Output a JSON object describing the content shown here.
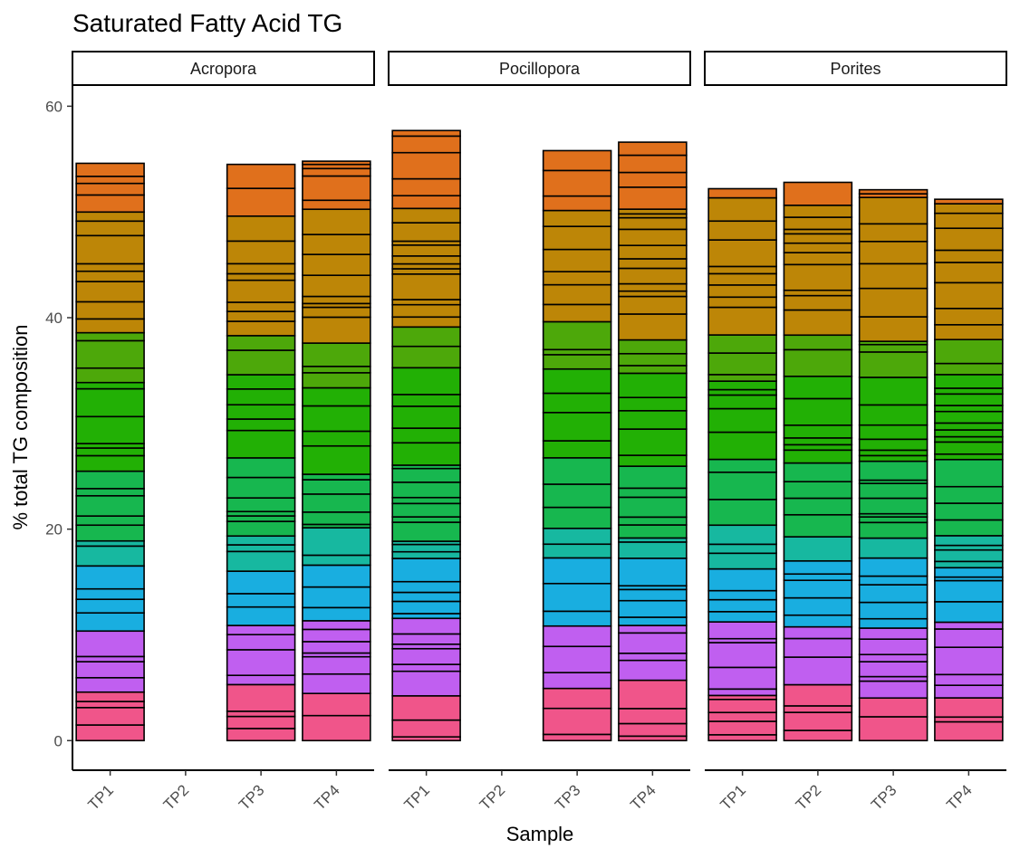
{
  "chart_data": {
    "type": "bar",
    "stacked": true,
    "title": "Saturated Fatty Acid TG",
    "xlabel": "Sample",
    "ylabel": "% total TG composition",
    "ylim": [
      -2.8,
      62
    ],
    "y_ticks": [
      0,
      20,
      40,
      60
    ],
    "x_tick_labels": [
      "TP1",
      "TP2",
      "TP3",
      "TP4"
    ],
    "facets": [
      {
        "name": "Acropora",
        "bars": [
          {
            "sample": "TP1",
            "total": 54.6
          },
          {
            "sample": "TP2",
            "total": 0
          },
          {
            "sample": "TP3",
            "total": 54.5
          },
          {
            "sample": "TP4",
            "total": 54.8
          }
        ]
      },
      {
        "name": "Pocillopora",
        "bars": [
          {
            "sample": "TP1",
            "total": 57.7
          },
          {
            "sample": "TP2",
            "total": 0
          },
          {
            "sample": "TP3",
            "total": 55.8
          },
          {
            "sample": "TP4",
            "total": 56.6
          }
        ]
      },
      {
        "name": "Porites",
        "bars": [
          {
            "sample": "TP1",
            "total": 52.2
          },
          {
            "sample": "TP2",
            "total": 52.8
          },
          {
            "sample": "TP3",
            "total": 52.1
          },
          {
            "sample": "TP4",
            "total": 51.2
          }
        ]
      }
    ],
    "color_bands": [
      {
        "from": 0,
        "to": 4.5,
        "color": "#f0558a"
      },
      {
        "from": 4.5,
        "to": 11,
        "color": "#c05ff0"
      },
      {
        "from": 11,
        "to": 16.5,
        "color": "#19aee0"
      },
      {
        "from": 16.5,
        "to": 19.5,
        "color": "#17b8a0"
      },
      {
        "from": 19.5,
        "to": 26,
        "color": "#17b74f"
      },
      {
        "from": 26,
        "to": 34,
        "color": "#22b005"
      },
      {
        "from": 34,
        "to": 38.5,
        "color": "#4da80a"
      },
      {
        "from": 38.5,
        "to": 50.5,
        "color": "#bd8607"
      },
      {
        "from": 50.5,
        "to": 62,
        "color": "#e0701c"
      }
    ],
    "legend": "none"
  }
}
